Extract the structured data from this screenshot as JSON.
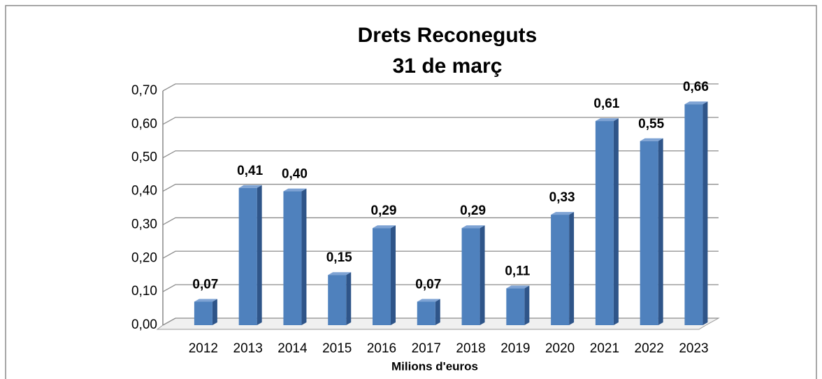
{
  "chart_data": {
    "type": "bar3d",
    "title": "Drets Reconeguts",
    "subtitle": "31 de març",
    "x_label": "Milions d'euros",
    "categories": [
      "2012",
      "2013",
      "2014",
      "2015",
      "2016",
      "2017",
      "2018",
      "2019",
      "2020",
      "2021",
      "2022",
      "2023"
    ],
    "values": [
      0.07,
      0.41,
      0.4,
      0.15,
      0.29,
      0.07,
      0.29,
      0.11,
      0.33,
      0.61,
      0.55,
      0.66
    ],
    "value_labels": [
      "0,07",
      "0,41",
      "0,40",
      "0,15",
      "0,29",
      "0,07",
      "0,29",
      "0,11",
      "0,33",
      "0,61",
      "0,55",
      "0,66"
    ],
    "color": "#4f81bd",
    "ylim": [
      0,
      0.7
    ],
    "yticks": [
      {
        "value": 0,
        "label": "0,00"
      },
      {
        "value": 0.1,
        "label": "0,10"
      },
      {
        "value": 0.2,
        "label": "0,20"
      },
      {
        "value": 0.3,
        "label": "0,30"
      },
      {
        "value": 0.4,
        "label": "0,40"
      },
      {
        "value": 0.5,
        "label": "0,50"
      },
      {
        "value": 0.6,
        "label": "0,60"
      },
      {
        "value": 0.7,
        "label": "0,70"
      }
    ],
    "grid": true
  }
}
